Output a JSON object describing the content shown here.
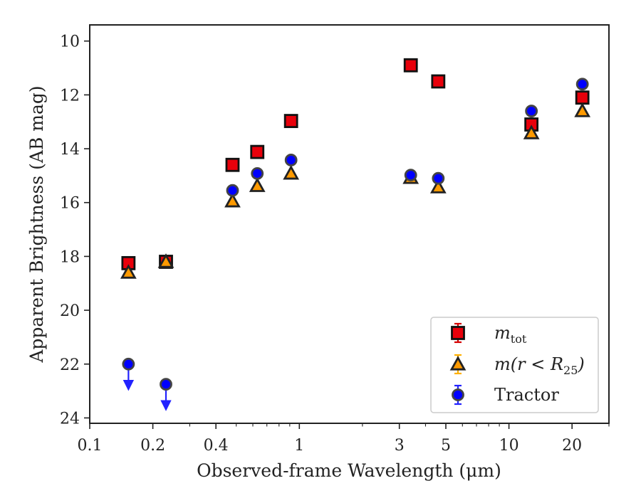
{
  "chart_data": {
    "type": "scatter",
    "xlabel": "Observed-frame Wavelength (μm)",
    "ylabel": "Apparent Brightness (AB mag)",
    "xscale": "log",
    "xlim": [
      0.1,
      30
    ],
    "ylim": [
      24.2,
      9.4
    ],
    "y_inverted": true,
    "grid": false,
    "legend_position": "lower-right",
    "x_ticks": [
      {
        "value": 0.1,
        "label": "0.1"
      },
      {
        "value": 0.2,
        "label": "0.2"
      },
      {
        "value": 0.4,
        "label": "0.4"
      },
      {
        "value": 1,
        "label": "1"
      },
      {
        "value": 3,
        "label": "3"
      },
      {
        "value": 5,
        "label": "5"
      },
      {
        "value": 10,
        "label": "10"
      },
      {
        "value": 20,
        "label": "20"
      }
    ],
    "y_ticks": [
      {
        "value": 10,
        "label": "10"
      },
      {
        "value": 12,
        "label": "12"
      },
      {
        "value": 14,
        "label": "14"
      },
      {
        "value": 16,
        "label": "16"
      },
      {
        "value": 18,
        "label": "18"
      },
      {
        "value": 20,
        "label": "20"
      },
      {
        "value": 22,
        "label": "22"
      },
      {
        "value": 24,
        "label": "24"
      }
    ],
    "series": [
      {
        "key": "mtot",
        "label_base": "m",
        "label_sub": "tot",
        "marker": "square",
        "color": "#e8000b",
        "errcolor": "#d40000",
        "points": [
          {
            "x": 0.153,
            "y": 18.25
          },
          {
            "x": 0.231,
            "y": 18.2
          },
          {
            "x": 0.48,
            "y": 14.6
          },
          {
            "x": 0.63,
            "y": 14.12
          },
          {
            "x": 0.913,
            "y": 12.97
          },
          {
            "x": 3.4,
            "y": 10.9
          },
          {
            "x": 4.6,
            "y": 11.5
          },
          {
            "x": 12.8,
            "y": 13.1
          },
          {
            "x": 22.4,
            "y": 12.1
          }
        ]
      },
      {
        "key": "mr25",
        "label_base": "m(r < R",
        "label_sub": "25",
        "label_end": ")",
        "marker": "triangle",
        "color": "#ff9a00",
        "errcolor": "#ffb000",
        "points": [
          {
            "x": 0.153,
            "y": 18.6
          },
          {
            "x": 0.231,
            "y": 18.2
          },
          {
            "x": 0.48,
            "y": 15.95
          },
          {
            "x": 0.63,
            "y": 15.38
          },
          {
            "x": 0.913,
            "y": 14.92
          },
          {
            "x": 3.4,
            "y": 15.08
          },
          {
            "x": 4.6,
            "y": 15.43
          },
          {
            "x": 12.8,
            "y": 13.42
          },
          {
            "x": 22.4,
            "y": 12.6
          }
        ]
      },
      {
        "key": "tractor",
        "label": "Tractor",
        "marker": "circle",
        "color": "#0000ff",
        "errcolor": "#2222ff",
        "points": [
          {
            "x": 0.153,
            "y": 22.0,
            "upper_limit": true
          },
          {
            "x": 0.231,
            "y": 22.75,
            "upper_limit": true
          },
          {
            "x": 0.48,
            "y": 15.55
          },
          {
            "x": 0.63,
            "y": 14.92
          },
          {
            "x": 0.913,
            "y": 14.42
          },
          {
            "x": 3.4,
            "y": 14.98
          },
          {
            "x": 4.6,
            "y": 15.1
          },
          {
            "x": 12.8,
            "y": 12.6
          },
          {
            "x": 22.4,
            "y": 11.6
          }
        ]
      }
    ]
  }
}
